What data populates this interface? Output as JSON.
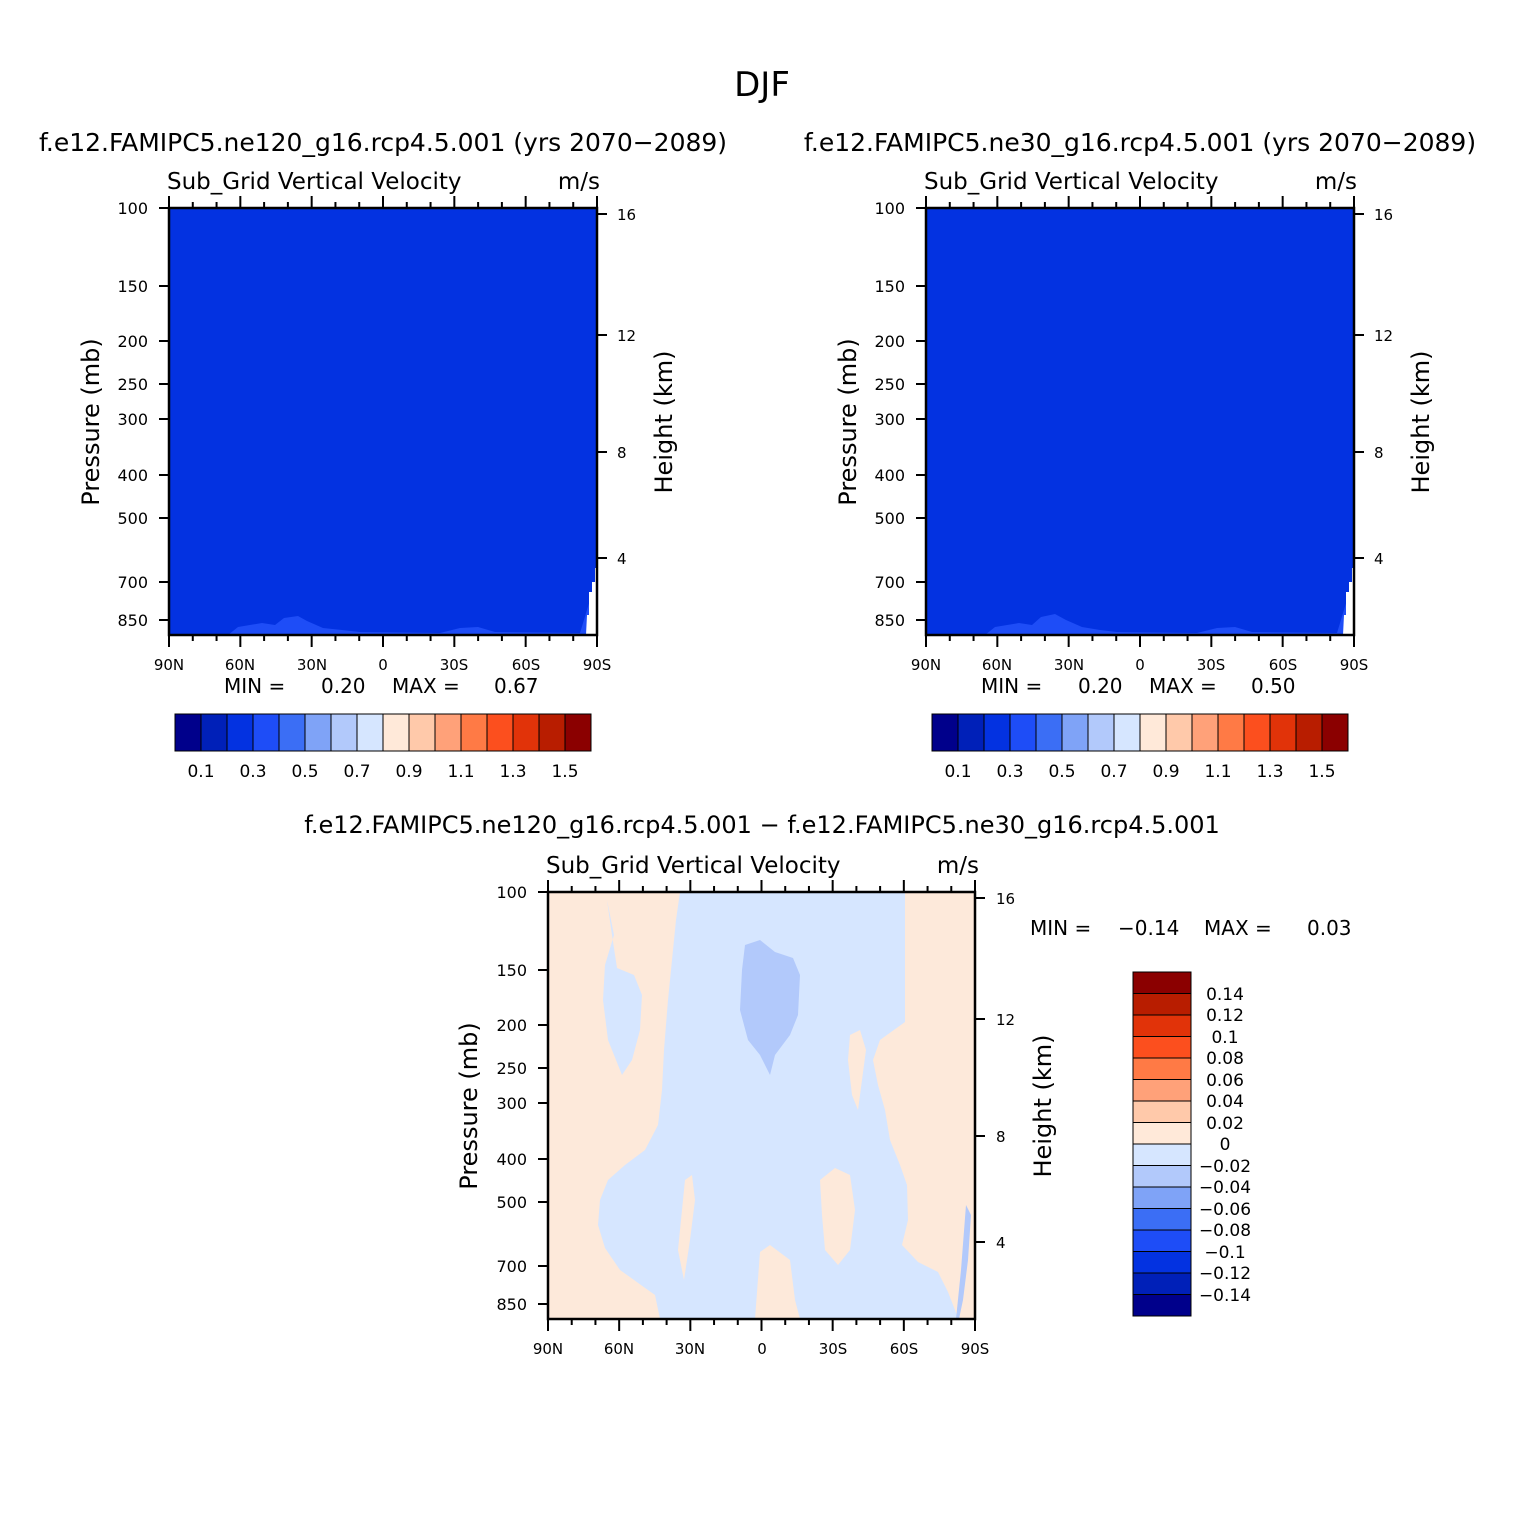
{
  "figure": {
    "title": "DJF",
    "diff_title": "f.e12.FAMIPC5.ne120_g16.rcp4.5.001 − f.e12.FAMIPC5.ne30_g16.rcp4.5.001"
  },
  "colors": {
    "fill_main": "#0332e1",
    "fill_light": "#1e4df7",
    "ten_palette": [
      "#00008b",
      "#0020b8",
      "#0332e1",
      "#1e4df7",
      "#3b6ef5",
      "#7fa3f7",
      "#b2c9fb",
      "#d6e6ff",
      "#ffe9d9",
      "#ffc9aa",
      "#ffa179",
      "#ff7a45",
      "#fc4f1e",
      "#e13309",
      "#b81d00",
      "#8b0000"
    ]
  },
  "chart_data": [
    {
      "type": "heatmap",
      "title": "f.e12.FAMIPC5.ne120_g16.rcp4.5.001 (yrs 2070−2089)",
      "variable": "Sub_Grid Vertical Velocity",
      "units": "m/s",
      "ylabel": "Pressure (mb)",
      "ylabel_right": "Height (km)",
      "xticks": [
        "90N",
        "60N",
        "30N",
        "0",
        "30S",
        "60S",
        "90S"
      ],
      "yticks": [
        "100",
        "150",
        "200",
        "250",
        "300",
        "400",
        "500",
        "700",
        "850"
      ],
      "yticks_right": [
        "16",
        "12",
        "8",
        "4"
      ],
      "min_label": "MIN =",
      "min_value": "0.20",
      "max_label": "MAX =",
      "max_value": "0.67",
      "colorbar_levels": [
        "0.1",
        "0.3",
        "0.5",
        "0.7",
        "0.9",
        "1.1",
        "1.3",
        "1.5"
      ]
    },
    {
      "type": "heatmap",
      "title": "f.e12.FAMIPC5.ne30_g16.rcp4.5.001 (yrs 2070−2089)",
      "variable": "Sub_Grid Vertical Velocity",
      "units": "m/s",
      "ylabel": "Pressure (mb)",
      "ylabel_right": "Height (km)",
      "xticks": [
        "90N",
        "60N",
        "30N",
        "0",
        "30S",
        "60S",
        "90S"
      ],
      "yticks": [
        "100",
        "150",
        "200",
        "250",
        "300",
        "400",
        "500",
        "700",
        "850"
      ],
      "yticks_right": [
        "16",
        "12",
        "8",
        "4"
      ],
      "min_label": "MIN =",
      "min_value": "0.20",
      "max_label": "MAX =",
      "max_value": "0.50",
      "colorbar_levels": [
        "0.1",
        "0.3",
        "0.5",
        "0.7",
        "0.9",
        "1.1",
        "1.3",
        "1.5"
      ]
    },
    {
      "type": "heatmap",
      "variable": "Sub_Grid Vertical Velocity",
      "units": "m/s",
      "ylabel": "Pressure (mb)",
      "ylabel_right": "Height (km)",
      "xticks": [
        "90N",
        "60N",
        "30N",
        "0",
        "30S",
        "60S",
        "90S"
      ],
      "yticks": [
        "100",
        "150",
        "200",
        "250",
        "300",
        "400",
        "500",
        "700",
        "850"
      ],
      "yticks_right": [
        "16",
        "12",
        "8",
        "4"
      ],
      "min_label": "MIN =",
      "min_value": "−0.14",
      "max_label": "MAX =",
      "max_value": "0.03",
      "colorbar_levels": [
        "0.14",
        "0.12",
        "0.1",
        "0.08",
        "0.06",
        "0.04",
        "0.02",
        "0",
        "−0.02",
        "−0.04",
        "−0.06",
        "−0.08",
        "−0.1",
        "−0.12",
        "−0.14"
      ]
    }
  ]
}
